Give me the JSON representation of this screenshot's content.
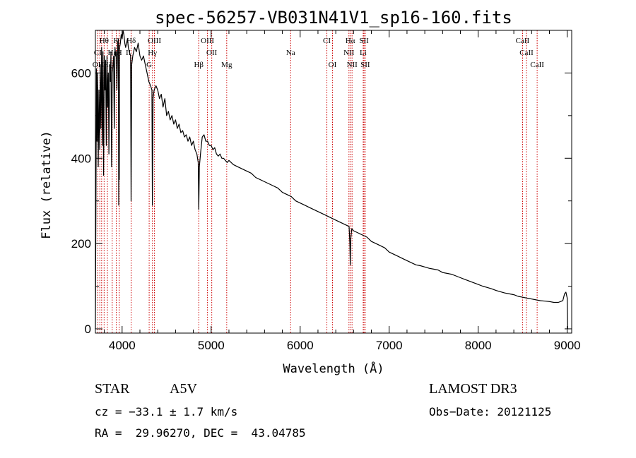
{
  "chart_data": {
    "type": "line",
    "title": "spec-56257-VB031N41V1_sp16-160.fits",
    "xlabel": "Wavelength (Å)",
    "ylabel": "Flux (relative)",
    "xlim": [
      3700,
      9050
    ],
    "ylim": [
      -10,
      700
    ],
    "xticks": [
      "4000",
      "5000",
      "6000",
      "7000",
      "8000",
      "9000"
    ],
    "yticks": [
      "0",
      "200",
      "400",
      "600"
    ],
    "x_tick_values": [
      4000,
      5000,
      6000,
      7000,
      8000,
      9000
    ],
    "y_tick_values": [
      0,
      200,
      400,
      600
    ],
    "series": [
      {
        "name": "flux",
        "points": [
          [
            3700,
            0
          ],
          [
            3705,
            240
          ],
          [
            3712,
            610
          ],
          [
            3718,
            440
          ],
          [
            3725,
            600
          ],
          [
            3732,
            380
          ],
          [
            3740,
            560
          ],
          [
            3748,
            420
          ],
          [
            3755,
            620
          ],
          [
            3762,
            470
          ],
          [
            3770,
            660
          ],
          [
            3778,
            430
          ],
          [
            3785,
            650
          ],
          [
            3792,
            360
          ],
          [
            3800,
            640
          ],
          [
            3808,
            560
          ],
          [
            3815,
            630
          ],
          [
            3822,
            430
          ],
          [
            3830,
            640
          ],
          [
            3838,
            520
          ],
          [
            3845,
            600
          ],
          [
            3852,
            410
          ],
          [
            3860,
            620
          ],
          [
            3868,
            580
          ],
          [
            3875,
            650
          ],
          [
            3882,
            380
          ],
          [
            3890,
            600
          ],
          [
            3898,
            620
          ],
          [
            3905,
            640
          ],
          [
            3912,
            470
          ],
          [
            3920,
            660
          ],
          [
            3928,
            640
          ],
          [
            3935,
            650
          ],
          [
            3942,
            560
          ],
          [
            3950,
            670
          ],
          [
            3958,
            680
          ],
          [
            3962,
            290
          ],
          [
            3965,
            450
          ],
          [
            3968,
            350
          ],
          [
            3972,
            660
          ],
          [
            3980,
            670
          ],
          [
            3990,
            690
          ],
          [
            4000,
            680
          ],
          [
            4010,
            700
          ],
          [
            4020,
            690
          ],
          [
            4030,
            670
          ],
          [
            4040,
            660
          ],
          [
            4050,
            670
          ],
          [
            4060,
            680
          ],
          [
            4070,
            660
          ],
          [
            4080,
            650
          ],
          [
            4095,
            640
          ],
          [
            4101,
            300
          ],
          [
            4108,
            620
          ],
          [
            4120,
            640
          ],
          [
            4140,
            660
          ],
          [
            4160,
            650
          ],
          [
            4180,
            670
          ],
          [
            4200,
            640
          ],
          [
            4220,
            630
          ],
          [
            4240,
            640
          ],
          [
            4260,
            620
          ],
          [
            4280,
            600
          ],
          [
            4300,
            580
          ],
          [
            4320,
            570
          ],
          [
            4335,
            560
          ],
          [
            4340,
            290
          ],
          [
            4348,
            540
          ],
          [
            4360,
            560
          ],
          [
            4380,
            570
          ],
          [
            4400,
            560
          ],
          [
            4420,
            540
          ],
          [
            4440,
            550
          ],
          [
            4460,
            520
          ],
          [
            4480,
            540
          ],
          [
            4500,
            500
          ],
          [
            4520,
            510
          ],
          [
            4540,
            490
          ],
          [
            4560,
            500
          ],
          [
            4580,
            480
          ],
          [
            4600,
            490
          ],
          [
            4620,
            470
          ],
          [
            4640,
            480
          ],
          [
            4660,
            460
          ],
          [
            4680,
            465
          ],
          [
            4700,
            450
          ],
          [
            4720,
            455
          ],
          [
            4740,
            440
          ],
          [
            4760,
            450
          ],
          [
            4780,
            430
          ],
          [
            4800,
            440
          ],
          [
            4820,
            420
          ],
          [
            4840,
            410
          ],
          [
            4855,
            390
          ],
          [
            4861,
            280
          ],
          [
            4868,
            380
          ],
          [
            4880,
            410
          ],
          [
            4900,
            450
          ],
          [
            4920,
            455
          ],
          [
            4940,
            440
          ],
          [
            4960,
            440
          ],
          [
            4980,
            430
          ],
          [
            5000,
            430
          ],
          [
            5020,
            420
          ],
          [
            5040,
            425
          ],
          [
            5060,
            410
          ],
          [
            5080,
            405
          ],
          [
            5100,
            410
          ],
          [
            5120,
            400
          ],
          [
            5140,
            400
          ],
          [
            5160,
            395
          ],
          [
            5180,
            390
          ],
          [
            5200,
            395
          ],
          [
            5250,
            385
          ],
          [
            5300,
            380
          ],
          [
            5350,
            375
          ],
          [
            5400,
            370
          ],
          [
            5450,
            365
          ],
          [
            5500,
            355
          ],
          [
            5550,
            350
          ],
          [
            5600,
            345
          ],
          [
            5650,
            340
          ],
          [
            5700,
            335
          ],
          [
            5750,
            330
          ],
          [
            5800,
            320
          ],
          [
            5850,
            315
          ],
          [
            5900,
            310
          ],
          [
            5950,
            300
          ],
          [
            6000,
            295
          ],
          [
            6050,
            290
          ],
          [
            6100,
            285
          ],
          [
            6150,
            280
          ],
          [
            6200,
            275
          ],
          [
            6250,
            270
          ],
          [
            6300,
            265
          ],
          [
            6350,
            260
          ],
          [
            6400,
            255
          ],
          [
            6450,
            250
          ],
          [
            6500,
            245
          ],
          [
            6550,
            240
          ],
          [
            6558,
            200
          ],
          [
            6563,
            150
          ],
          [
            6568,
            210
          ],
          [
            6580,
            235
          ],
          [
            6600,
            230
          ],
          [
            6650,
            225
          ],
          [
            6700,
            220
          ],
          [
            6750,
            215
          ],
          [
            6800,
            205
          ],
          [
            6850,
            200
          ],
          [
            6900,
            195
          ],
          [
            6950,
            190
          ],
          [
            7000,
            180
          ],
          [
            7050,
            175
          ],
          [
            7100,
            170
          ],
          [
            7150,
            165
          ],
          [
            7200,
            160
          ],
          [
            7250,
            155
          ],
          [
            7300,
            150
          ],
          [
            7350,
            148
          ],
          [
            7400,
            145
          ],
          [
            7450,
            142
          ],
          [
            7500,
            140
          ],
          [
            7550,
            138
          ],
          [
            7600,
            132
          ],
          [
            7650,
            130
          ],
          [
            7700,
            128
          ],
          [
            7750,
            124
          ],
          [
            7800,
            120
          ],
          [
            7850,
            116
          ],
          [
            7900,
            112
          ],
          [
            7950,
            108
          ],
          [
            8000,
            104
          ],
          [
            8050,
            100
          ],
          [
            8100,
            97
          ],
          [
            8150,
            94
          ],
          [
            8200,
            90
          ],
          [
            8250,
            87
          ],
          [
            8300,
            84
          ],
          [
            8350,
            82
          ],
          [
            8400,
            80
          ],
          [
            8450,
            76
          ],
          [
            8500,
            74
          ],
          [
            8550,
            72
          ],
          [
            8600,
            70
          ],
          [
            8650,
            68
          ],
          [
            8700,
            66
          ],
          [
            8750,
            65
          ],
          [
            8800,
            64
          ],
          [
            8850,
            62
          ],
          [
            8900,
            62
          ],
          [
            8950,
            66
          ],
          [
            8970,
            82
          ],
          [
            8985,
            86
          ],
          [
            9000,
            72
          ],
          [
            9005,
            0
          ]
        ]
      }
    ],
    "annotations": [
      {
        "label": "Hθ",
        "wave": 3798,
        "row": 1
      },
      {
        "label": "K",
        "wave": 3934,
        "row": 1
      },
      {
        "label": "Hδ",
        "wave": 4102,
        "row": 1
      },
      {
        "label": "OIII",
        "wave": 4363,
        "row": 1
      },
      {
        "label": "OIII",
        "wave": 4959,
        "row": 1
      },
      {
        "label": "CI",
        "wave": 6300,
        "row": 1
      },
      {
        "label": "Hα",
        "wave": 6563,
        "row": 1
      },
      {
        "label": "SII",
        "wave": 6717,
        "row": 1
      },
      {
        "label": "CaII",
        "wave": 8498,
        "row": 1
      },
      {
        "label": "CI",
        "wave": 3727,
        "row": 2
      },
      {
        "label": "Hε",
        "wave": 3889,
        "row": 2
      },
      {
        "label": "H",
        "wave": 3968,
        "row": 2
      },
      {
        "label": "II",
        "wave": 4070,
        "row": 2
      },
      {
        "label": "Hγ",
        "wave": 4340,
        "row": 2
      },
      {
        "label": "OII",
        "wave": 5007,
        "row": 2
      },
      {
        "label": "Na",
        "wave": 5893,
        "row": 2
      },
      {
        "label": "NII",
        "wave": 6548,
        "row": 2
      },
      {
        "label": "Li",
        "wave": 6708,
        "row": 2
      },
      {
        "label": "CaII",
        "wave": 8542,
        "row": 2
      },
      {
        "label": "OII",
        "wave": 3727,
        "row": 3
      },
      {
        "label": "Hζ",
        "wave": 3835,
        "row": 3
      },
      {
        "label": "G",
        "wave": 4304,
        "row": 3
      },
      {
        "label": "Hβ",
        "wave": 4861,
        "row": 3
      },
      {
        "label": "Mg",
        "wave": 5175,
        "row": 3
      },
      {
        "label": "OI",
        "wave": 6363,
        "row": 3
      },
      {
        "label": "NII",
        "wave": 6583,
        "row": 3
      },
      {
        "label": "SII",
        "wave": 6731,
        "row": 3
      },
      {
        "label": "CaII",
        "wave": 8662,
        "row": 3
      }
    ],
    "line_waves": [
      3727,
      3750,
      3770,
      3798,
      3835,
      3889,
      3934,
      3968,
      4102,
      4304,
      4340,
      4363,
      4861,
      4959,
      5007,
      5175,
      5893,
      6300,
      6363,
      6548,
      6563,
      6583,
      6708,
      6717,
      6731,
      8498,
      8542,
      8662
    ]
  },
  "info": {
    "object_class": "STAR",
    "subclass": "A5V",
    "survey": "LAMOST DR3",
    "velocity": "cz = −33.1 ± 1.7 km/s",
    "obs_date": "Obs−Date: 20121125",
    "coords": "RA =  29.96270, DEC =  43.04785"
  }
}
